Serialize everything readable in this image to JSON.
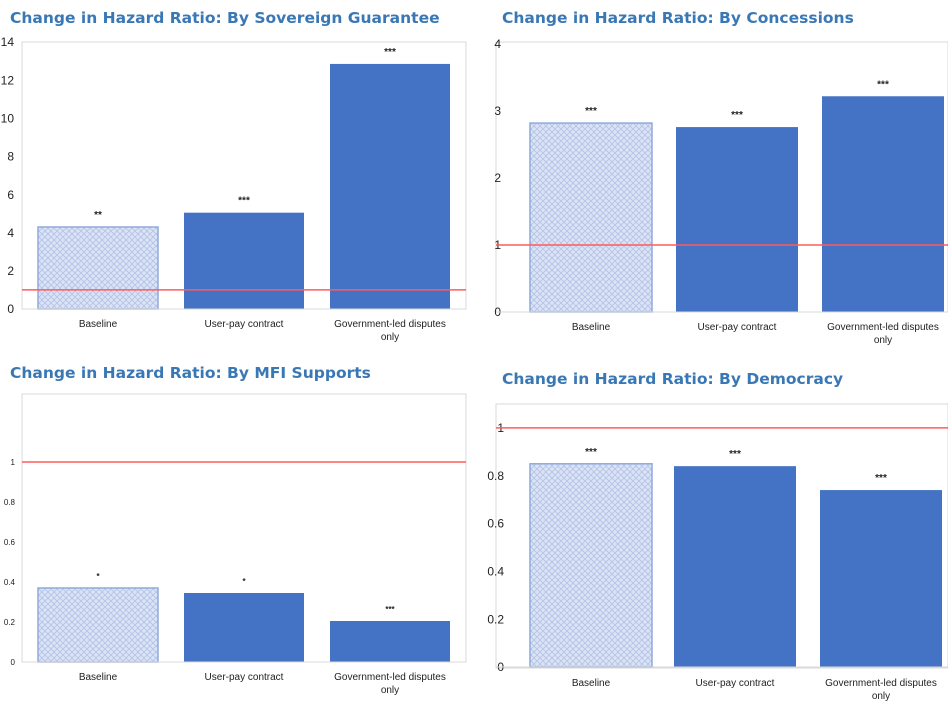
{
  "colors": {
    "title": "#3a78b5",
    "bar_solid": "#4472c4",
    "bar_hatched_fill": "#dbe3f4",
    "bar_hatched_line": "#b3c3e6",
    "bar_hatched_border": "#8faadc",
    "reference_line": "#ff5b5b",
    "frame": "#d9d9d9"
  },
  "chart_data": [
    {
      "type": "bar",
      "title": "Change in Hazard Ratio: By Sovereign Guarantee",
      "categories": [
        "Baseline",
        "User-pay contract",
        "Government-led disputes only"
      ],
      "category_lines": [
        [
          "Baseline"
        ],
        [
          "User-pay contract"
        ],
        [
          "Government-led disputes",
          "only"
        ]
      ],
      "values": [
        4.3,
        5.05,
        12.85
      ],
      "significance": [
        "**",
        "***",
        "***"
      ],
      "hatched": [
        true,
        false,
        false
      ],
      "reference_line": 1,
      "ylim": [
        0,
        14
      ],
      "yticks": [
        0,
        2,
        4,
        6,
        8,
        10,
        12,
        14
      ],
      "ytick_labels": [
        "0",
        "2",
        "4",
        "6",
        "8",
        "10",
        "12",
        "14"
      ],
      "xlabel": "",
      "ylabel": "",
      "grid": false,
      "legend": "none"
    },
    {
      "type": "bar",
      "title": "Change in Hazard Ratio: By Concessions",
      "categories": [
        "Baseline",
        "User-pay contract",
        "Government-led disputes only"
      ],
      "category_lines": [
        [
          "Baseline"
        ],
        [
          "User-pay contract"
        ],
        [
          "Government-led disputes",
          "only"
        ]
      ],
      "values": [
        2.82,
        2.76,
        3.22
      ],
      "significance": [
        "***",
        "***",
        "***"
      ],
      "hatched": [
        true,
        false,
        false
      ],
      "reference_line": 1,
      "ylim": [
        0,
        4
      ],
      "yticks": [
        0,
        1,
        2,
        3,
        4
      ],
      "ytick_labels": [
        "0",
        "1",
        "2",
        "3",
        "4"
      ],
      "xlabel": "",
      "ylabel": "",
      "grid": false,
      "legend": "none"
    },
    {
      "type": "bar",
      "title": "Change in Hazard Ratio: By MFI Supports",
      "categories": [
        "Baseline",
        "User-pay contract",
        "Government-led disputes only"
      ],
      "category_lines": [
        [
          "Baseline"
        ],
        [
          "User-pay contract"
        ],
        [
          "Government-led disputes",
          "only"
        ]
      ],
      "values": [
        0.37,
        0.345,
        0.205
      ],
      "significance": [
        "*",
        "*",
        "***"
      ],
      "hatched": [
        true,
        false,
        false
      ],
      "reference_line": 1,
      "ylim": [
        0,
        1.2
      ],
      "yticks": [
        0,
        0.2,
        0.4,
        0.6,
        0.8,
        1
      ],
      "ytick_labels": [
        "0",
        "0.2",
        "0.4",
        "0.6",
        "0.8",
        "1"
      ],
      "xlabel": "",
      "ylabel": "",
      "grid": false,
      "legend": "none"
    },
    {
      "type": "bar",
      "title": "Change in Hazard Ratio: By Democracy",
      "categories": [
        "Baseline",
        "User-pay contract",
        "Government-led disputes only"
      ],
      "category_lines": [
        [
          "Baseline"
        ],
        [
          "User-pay contract"
        ],
        [
          "Government-led disputes",
          "only"
        ]
      ],
      "values": [
        0.85,
        0.84,
        0.74
      ],
      "significance": [
        "***",
        "***",
        "***"
      ],
      "hatched": [
        true,
        false,
        false
      ],
      "reference_line": 1,
      "ylim": [
        0,
        1.1
      ],
      "yticks": [
        0,
        0.2,
        0.4,
        0.6,
        0.8,
        1
      ],
      "ytick_labels": [
        "0",
        "0.2",
        "0.4",
        "0.6",
        "0.8",
        "1"
      ],
      "xlabel": "",
      "ylabel": "",
      "grid": false,
      "legend": "none"
    }
  ]
}
